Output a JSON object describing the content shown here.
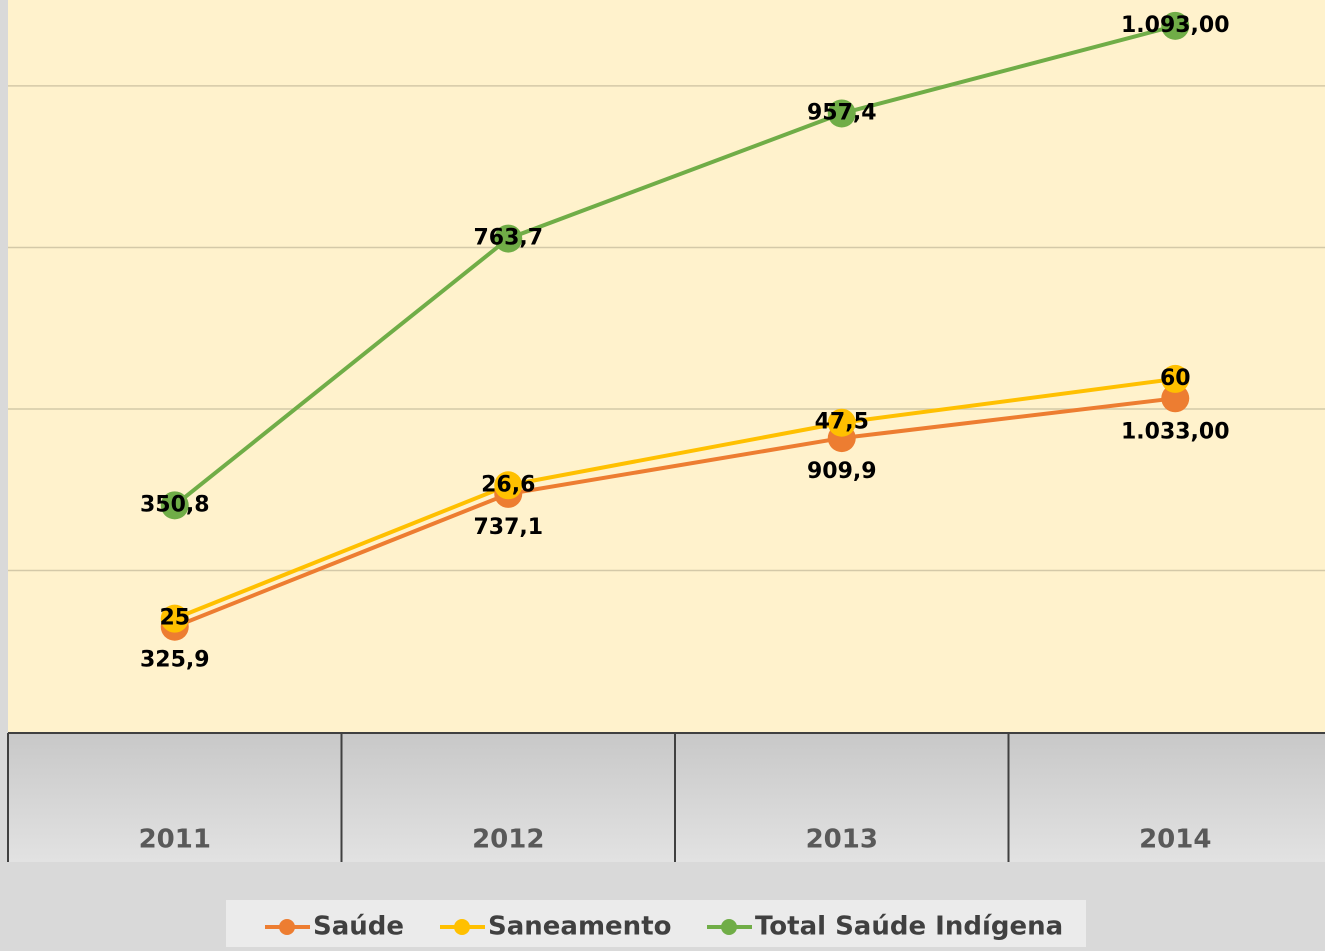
{
  "chart_data": {
    "type": "line",
    "stacked": true,
    "categories": [
      "2011",
      "2012",
      "2013",
      "2014"
    ],
    "series": [
      {
        "name": "Saúde",
        "color": "#ED7D31",
        "values": [
          325.9,
          737.1,
          909.9,
          1033
        ],
        "value_labels": [
          "325,9",
          "737,1",
          "909,9",
          "1.033,00"
        ],
        "label_position": "below"
      },
      {
        "name": "Saneamento",
        "color": "#FFC000",
        "values": [
          25,
          26.6,
          47.5,
          60
        ],
        "value_labels": [
          "25",
          "26,6",
          "47,5",
          "60"
        ],
        "label_position": "center"
      },
      {
        "name": "Total Saúde Indígena",
        "color": "#70AD47",
        "values": [
          350.8,
          763.7,
          957.4,
          1093
        ],
        "value_labels": [
          "350,8",
          "763,7",
          "957,4",
          "1.093,00"
        ],
        "label_position": "center"
      }
    ],
    "ylim": [
      0,
      2266
    ],
    "yticks": [
      0,
      500,
      1000,
      1500,
      2000
    ],
    "grid": true,
    "legend": "bottom"
  }
}
